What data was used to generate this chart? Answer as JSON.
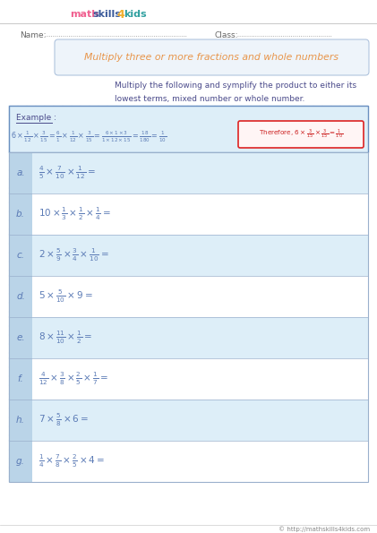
{
  "bg_color": "#ffffff",
  "grid_color": "#c8dff0",
  "header_line_color": "#cccccc",
  "title_box_color": "#eef4fa",
  "title_box_border": "#b0c4de",
  "title_text": "Multiply three or more fractions and whole numbers",
  "title_color": "#e8954a",
  "name_label": "Name:",
  "class_label": "Class:",
  "instruction_text": "Multiply the following and symplify the product to either its\nlowest terms, mixed number or whole number.",
  "instruction_color": "#4a4a8a",
  "example_color": "#4a4a8a",
  "label_color": "#5a7ab5",
  "problems": [
    {
      "label": "a.",
      "expr": "\\frac{4}{5} \\times \\frac{7}{10} \\times \\frac{1}{12} ="
    },
    {
      "label": "b.",
      "expr": "10 \\times \\frac{1}{3} \\times \\frac{1}{2} \\times \\frac{1}{4} ="
    },
    {
      "label": "c.",
      "expr": "2 \\times \\frac{5}{9} \\times \\frac{3}{4} \\times \\frac{1}{10} ="
    },
    {
      "label": "d.",
      "expr": "5 \\times \\frac{5}{10} \\times 9 ="
    },
    {
      "label": "e.",
      "expr": "8 \\times \\frac{11}{10} \\times \\frac{1}{2} ="
    },
    {
      "label": "f.",
      "expr": "\\frac{4}{12} \\times \\frac{3}{8} \\times \\frac{2}{5} \\times \\frac{1}{7} ="
    },
    {
      "label": "h.",
      "expr": "7 \\times \\frac{5}{8} \\times 6 ="
    },
    {
      "label": "g.",
      "expr": "\\frac{1}{4} \\times \\frac{7}{8} \\times \\frac{2}{5} \\times 4 ="
    }
  ],
  "row_colors": [
    "#ddeef8",
    "#ffffff"
  ],
  "example_box_color": "#ddeef8",
  "example_box_border": "#6a8fc0",
  "footer_text": "© http://mathskills4kids.com",
  "logo_math_color": "#f06090",
  "logo_skills_color": "#3a5a9a",
  "logo_4_color": "#f0b030",
  "logo_kids_color": "#30a0a0"
}
